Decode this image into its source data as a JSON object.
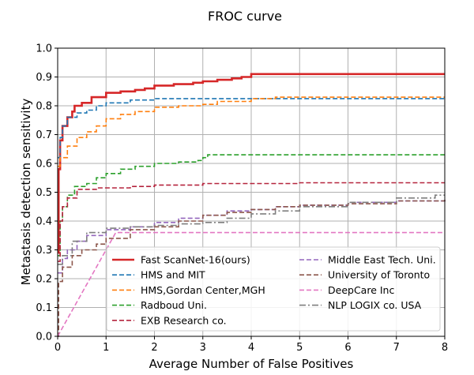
{
  "chart_data": {
    "type": "line",
    "title": "FROC curve",
    "xlabel": "Average Number of False Positives",
    "ylabel": "Metastasis detection sensitivity",
    "xlim": [
      0,
      8
    ],
    "ylim": [
      0,
      1.0
    ],
    "xticks": [
      0,
      1,
      2,
      3,
      4,
      5,
      6,
      7,
      8
    ],
    "yticks": [
      0.0,
      0.1,
      0.2,
      0.3,
      0.4,
      0.5,
      0.6,
      0.7,
      0.8,
      0.9,
      1.0
    ],
    "xtick_labels": [
      "0",
      "1",
      "2",
      "3",
      "4",
      "5",
      "6",
      "7",
      "8"
    ],
    "ytick_labels": [
      "0.0",
      "0.1",
      "0.2",
      "0.3",
      "0.4",
      "0.5",
      "0.6",
      "0.7",
      "0.8",
      "0.9",
      "1.0"
    ],
    "grid": true,
    "legend_position": "lower-center",
    "series": [
      {
        "name": "Fast ScanNet-16(ours)",
        "color": "#d62728",
        "style": "solid",
        "points": [
          [
            0,
            0.29
          ],
          [
            0.02,
            0.58
          ],
          [
            0.05,
            0.68
          ],
          [
            0.1,
            0.73
          ],
          [
            0.2,
            0.76
          ],
          [
            0.3,
            0.78
          ],
          [
            0.35,
            0.8
          ],
          [
            0.5,
            0.81
          ],
          [
            0.7,
            0.83
          ],
          [
            1.0,
            0.845
          ],
          [
            1.3,
            0.85
          ],
          [
            1.6,
            0.855
          ],
          [
            1.8,
            0.86
          ],
          [
            2.0,
            0.87
          ],
          [
            2.4,
            0.875
          ],
          [
            2.8,
            0.88
          ],
          [
            3.0,
            0.885
          ],
          [
            3.3,
            0.89
          ],
          [
            3.6,
            0.895
          ],
          [
            3.8,
            0.9
          ],
          [
            4.0,
            0.91
          ],
          [
            5.0,
            0.91
          ],
          [
            8.0,
            0.91
          ]
        ]
      },
      {
        "name": "HMS and MIT",
        "color": "#1f77b4",
        "style": "dash",
        "points": [
          [
            0,
            0.62
          ],
          [
            0.05,
            0.69
          ],
          [
            0.1,
            0.73
          ],
          [
            0.2,
            0.76
          ],
          [
            0.4,
            0.775
          ],
          [
            0.6,
            0.785
          ],
          [
            0.8,
            0.8
          ],
          [
            1.0,
            0.81
          ],
          [
            1.5,
            0.82
          ],
          [
            2.0,
            0.825
          ],
          [
            3.0,
            0.825
          ],
          [
            4.0,
            0.825
          ],
          [
            5.0,
            0.825
          ],
          [
            8.0,
            0.825
          ]
        ]
      },
      {
        "name": "HMS,Gordan Center,MGH",
        "color": "#ff7f0e",
        "style": "dash",
        "points": [
          [
            0,
            0.59
          ],
          [
            0.05,
            0.62
          ],
          [
            0.2,
            0.66
          ],
          [
            0.4,
            0.69
          ],
          [
            0.6,
            0.71
          ],
          [
            0.8,
            0.73
          ],
          [
            1.0,
            0.755
          ],
          [
            1.3,
            0.77
          ],
          [
            1.6,
            0.78
          ],
          [
            2.0,
            0.795
          ],
          [
            2.5,
            0.8
          ],
          [
            3.0,
            0.805
          ],
          [
            3.3,
            0.815
          ],
          [
            4.0,
            0.825
          ],
          [
            4.5,
            0.83
          ],
          [
            8.0,
            0.83
          ]
        ]
      },
      {
        "name": "Radboud Uni.",
        "color": "#2ca02c",
        "style": "dash",
        "points": [
          [
            0,
            0.28
          ],
          [
            0.05,
            0.4
          ],
          [
            0.1,
            0.45
          ],
          [
            0.2,
            0.49
          ],
          [
            0.35,
            0.52
          ],
          [
            0.6,
            0.53
          ],
          [
            0.8,
            0.55
          ],
          [
            1.0,
            0.565
          ],
          [
            1.3,
            0.58
          ],
          [
            1.6,
            0.59
          ],
          [
            2.0,
            0.6
          ],
          [
            2.5,
            0.605
          ],
          [
            2.9,
            0.61
          ],
          [
            3.0,
            0.62
          ],
          [
            3.1,
            0.63
          ],
          [
            5.0,
            0.63
          ],
          [
            8.0,
            0.63
          ]
        ]
      },
      {
        "name": "EXB Research co.",
        "color": "#b5253e",
        "style": "dash",
        "points": [
          [
            0,
            0.26
          ],
          [
            0.05,
            0.4
          ],
          [
            0.1,
            0.45
          ],
          [
            0.2,
            0.48
          ],
          [
            0.4,
            0.51
          ],
          [
            0.8,
            0.515
          ],
          [
            1.5,
            0.52
          ],
          [
            2.0,
            0.525
          ],
          [
            3.0,
            0.53
          ],
          [
            5.0,
            0.533
          ],
          [
            8.0,
            0.533
          ]
        ]
      },
      {
        "name": "Middle East Tech. Uni.",
        "color": "#9467bd",
        "style": "dash",
        "points": [
          [
            0,
            0.22
          ],
          [
            0.1,
            0.27
          ],
          [
            0.2,
            0.3
          ],
          [
            0.4,
            0.33
          ],
          [
            0.6,
            0.35
          ],
          [
            1.0,
            0.37
          ],
          [
            1.5,
            0.38
          ],
          [
            2.0,
            0.395
          ],
          [
            2.5,
            0.41
          ],
          [
            3.0,
            0.42
          ],
          [
            3.5,
            0.435
          ],
          [
            4.0,
            0.44
          ],
          [
            4.5,
            0.45
          ],
          [
            5.0,
            0.455
          ],
          [
            6.0,
            0.465
          ],
          [
            7.0,
            0.47
          ],
          [
            8.0,
            0.475
          ]
        ]
      },
      {
        "name": "University of Toronto",
        "color": "#8c564b",
        "style": "dash",
        "points": [
          [
            0,
            0.0
          ],
          [
            0.02,
            0.19
          ],
          [
            0.1,
            0.24
          ],
          [
            0.3,
            0.28
          ],
          [
            0.5,
            0.3
          ],
          [
            0.8,
            0.32
          ],
          [
            1.0,
            0.34
          ],
          [
            1.5,
            0.37
          ],
          [
            2.0,
            0.38
          ],
          [
            2.5,
            0.4
          ],
          [
            3.0,
            0.42
          ],
          [
            3.5,
            0.43
          ],
          [
            4.0,
            0.44
          ],
          [
            4.5,
            0.45
          ],
          [
            5.0,
            0.455
          ],
          [
            6.0,
            0.46
          ],
          [
            7.0,
            0.47
          ],
          [
            8.0,
            0.475
          ]
        ]
      },
      {
        "name": "DeepCare Inc",
        "color": "#e377c2",
        "style": "dash",
        "points": [
          [
            0,
            0.0
          ],
          [
            1.2,
            0.36
          ],
          [
            8.0,
            0.36
          ]
        ]
      },
      {
        "name": "NLP LOGIX co. USA",
        "color": "#7f7f7f",
        "style": "dashdot",
        "points": [
          [
            0,
            0.25
          ],
          [
            0.1,
            0.28
          ],
          [
            0.3,
            0.33
          ],
          [
            0.6,
            0.36
          ],
          [
            1.0,
            0.375
          ],
          [
            1.5,
            0.38
          ],
          [
            2.0,
            0.385
          ],
          [
            2.5,
            0.39
          ],
          [
            3.0,
            0.395
          ],
          [
            3.5,
            0.41
          ],
          [
            4.0,
            0.425
          ],
          [
            4.5,
            0.435
          ],
          [
            5.0,
            0.45
          ],
          [
            6.0,
            0.465
          ],
          [
            7.0,
            0.48
          ],
          [
            7.8,
            0.49
          ],
          [
            8.0,
            0.49
          ]
        ]
      }
    ]
  }
}
